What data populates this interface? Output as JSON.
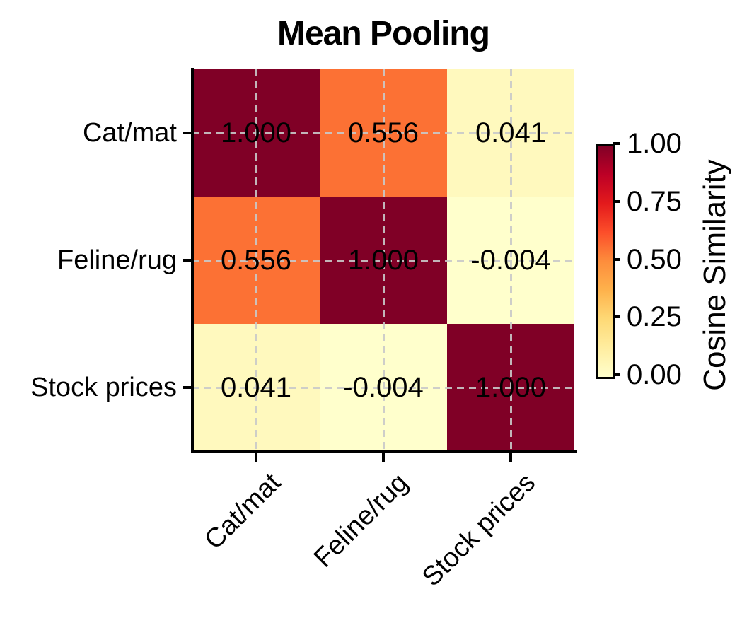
{
  "figure": {
    "background": "#ffffff"
  },
  "chart_data": {
    "type": "heatmap",
    "title": "Mean Pooling",
    "categories": [
      "Cat/mat",
      "Feline/rug",
      "Stock prices"
    ],
    "x_tick_labels": [
      "Cat/mat",
      "Feline/rug",
      "Stock prices"
    ],
    "y_tick_labels": [
      "Cat/mat",
      "Feline/rug",
      "Stock prices"
    ],
    "matrix": [
      [
        1.0,
        0.556,
        0.041
      ],
      [
        0.556,
        1.0,
        -0.004
      ],
      [
        0.041,
        -0.004,
        1.0
      ]
    ],
    "cell_labels": [
      [
        "1.000",
        "0.556",
        "0.041"
      ],
      [
        "0.556",
        "1.000",
        "-0.004"
      ],
      [
        "0.041",
        "-0.004",
        "1.000"
      ]
    ],
    "cell_colors": [
      [
        "#800026",
        "#FC7134",
        "#FFF9BE"
      ],
      [
        "#FC7134",
        "#800026",
        "#FFFFCC"
      ],
      [
        "#FFF9BE",
        "#FFFFCC",
        "#800026"
      ]
    ],
    "value_range": [
      0,
      1
    ],
    "grid": true,
    "gridline_color": "#c9c9c9",
    "colormap": "YlOrRd",
    "text_color": "#000000",
    "colorbar": {
      "label": "Cosine Similarity",
      "tick_labels": [
        "1.00",
        "0.75",
        "0.50",
        "0.25",
        "0.00"
      ],
      "tick_values": [
        1.0,
        0.75,
        0.5,
        0.25,
        0.0
      ],
      "gradient_stops_bottom_to_top": [
        "#ffffcc",
        "#ffeda0",
        "#fed976",
        "#feb24c",
        "#fd8d3c",
        "#fc4e2a",
        "#e31a1c",
        "#bd0026",
        "#800026"
      ],
      "position": "right"
    }
  }
}
